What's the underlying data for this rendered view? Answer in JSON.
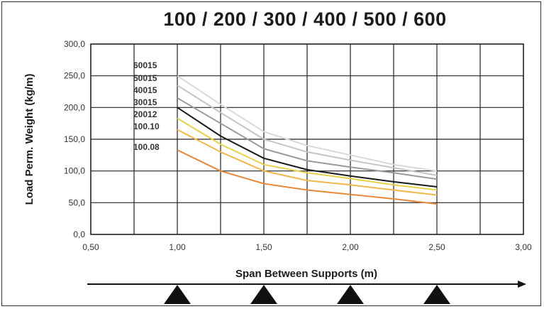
{
  "chart_data": {
    "type": "line",
    "title": "100 / 200 / 300 / 400 / 500 / 600",
    "xlabel": "Span Between Supports (m)",
    "ylabel": "Load Perm. Weight (kg/m)",
    "xlim": [
      0.5,
      3.0
    ],
    "ylim": [
      0,
      300
    ],
    "x_ticks": [
      "0,50",
      "1,00",
      "1,50",
      "2,00",
      "2,50",
      "3,00"
    ],
    "y_ticks": [
      "0,0",
      "50,0",
      "100,0",
      "150,0",
      "200,0",
      "250,0",
      "300,0"
    ],
    "grid": true,
    "x": [
      1.0,
      1.25,
      1.5,
      1.75,
      2.0,
      2.25,
      2.5
    ],
    "series": [
      {
        "name": "60015",
        "color": "#d9d9d9",
        "values": [
          250,
          205,
          162,
          140,
          125,
          110,
          100
        ]
      },
      {
        "name": "50015",
        "color": "#c4c4c4",
        "values": [
          235,
          192,
          150,
          130,
          117,
          105,
          93
        ]
      },
      {
        "name": "40015",
        "color": "#9a9a9a",
        "values": [
          215,
          175,
          135,
          116,
          106,
          97,
          87
        ]
      },
      {
        "name": "30015",
        "color": "#1a1a1a",
        "values": [
          200,
          155,
          120,
          102,
          92,
          83,
          75
        ]
      },
      {
        "name": "20012",
        "color": "#e6d24a",
        "values": [
          183,
          142,
          110,
          97,
          88,
          78,
          70
        ]
      },
      {
        "name": "100.10",
        "color": "#f0b84a",
        "values": [
          165,
          130,
          100,
          85,
          78,
          70,
          62
        ]
      },
      {
        "name": "100.08",
        "color": "#e58a3a",
        "values": [
          133,
          100,
          80,
          70,
          63,
          56,
          48
        ]
      }
    ],
    "supports_x": [
      1.0,
      1.5,
      2.0,
      2.5
    ]
  }
}
